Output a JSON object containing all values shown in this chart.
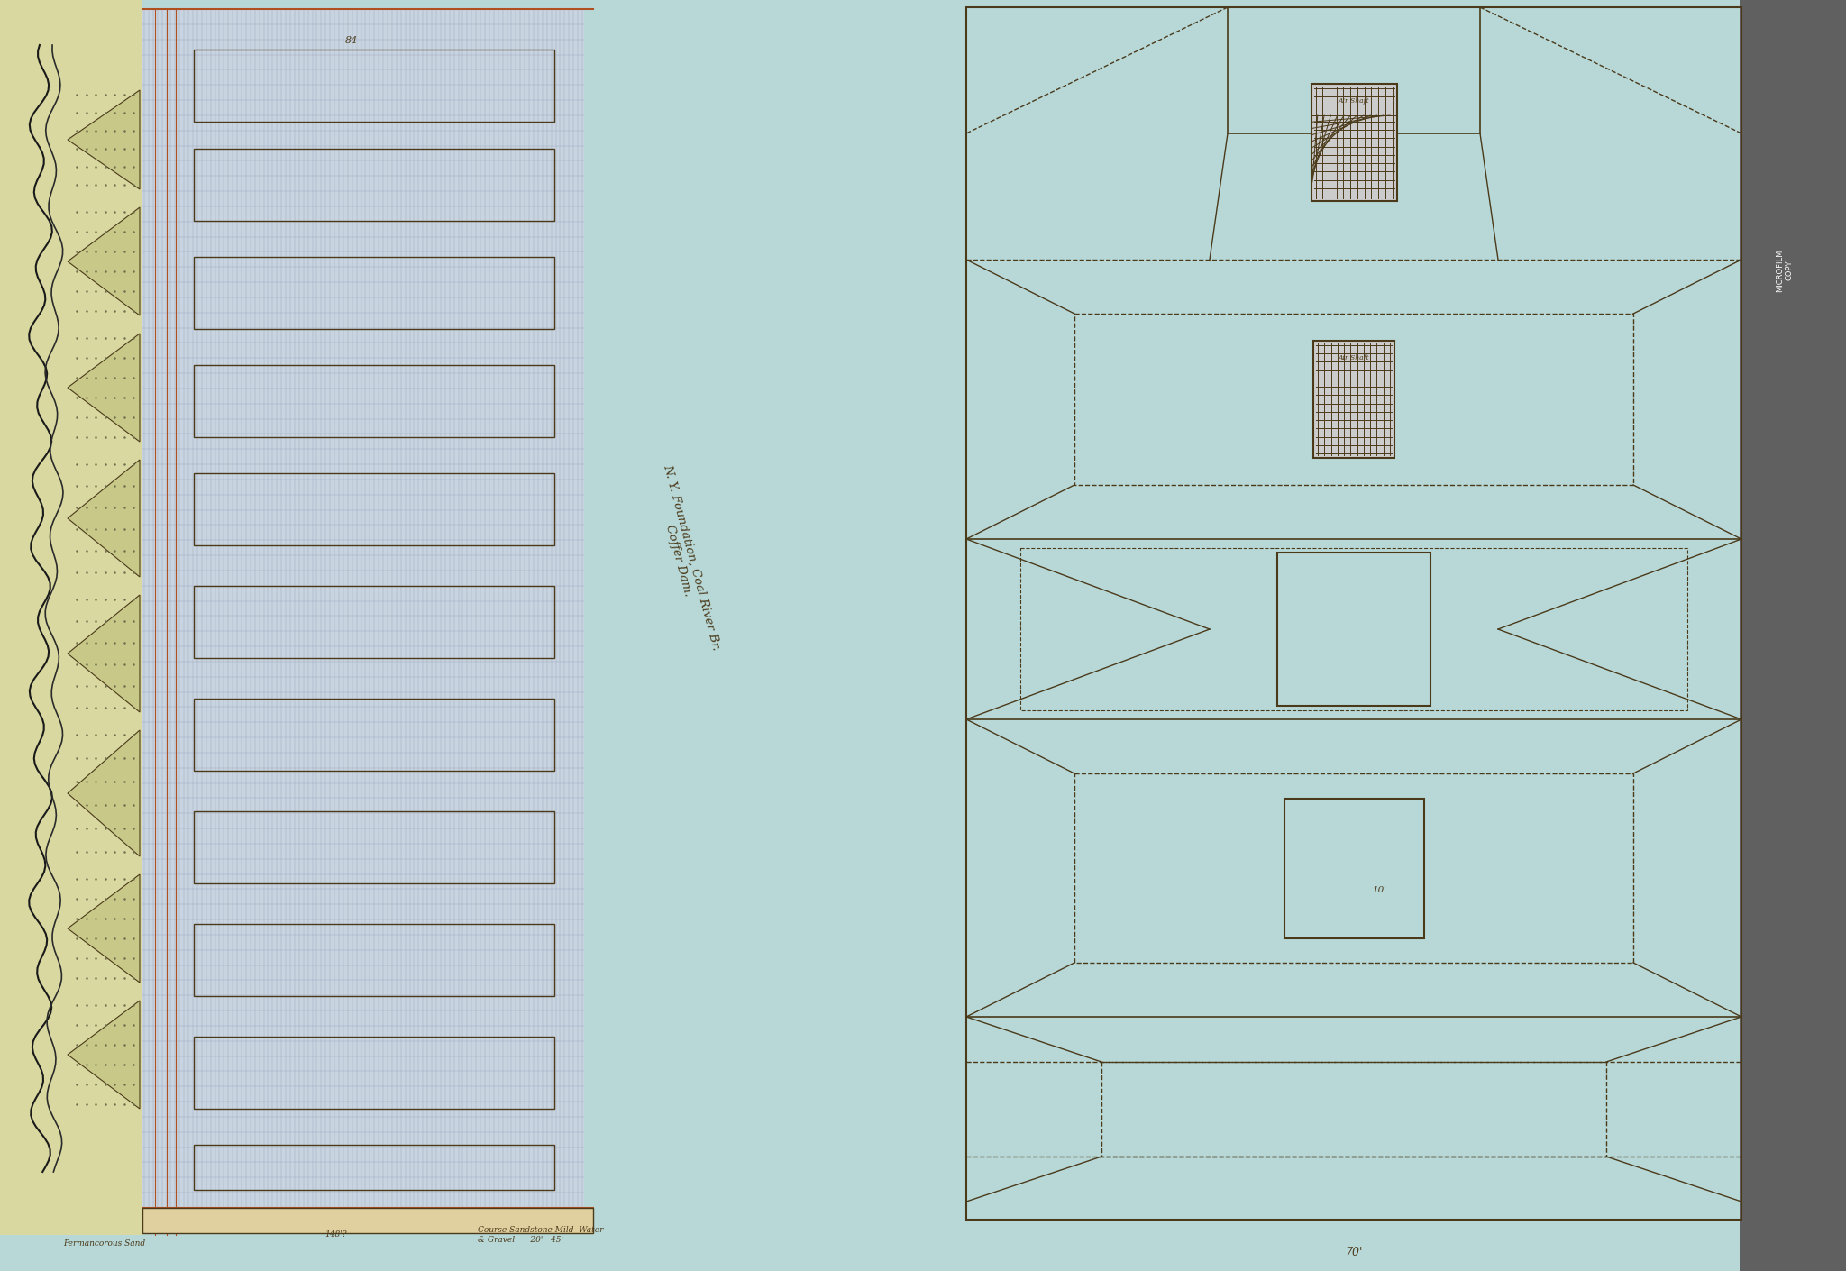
{
  "bg_color": "#b8d8d8",
  "left_bg_color": "#d8d8a0",
  "grid_bg_color": "#c8d4e0",
  "drawing_line_color": "#4a3a1a",
  "red_line_color": "#b05020",
  "figsize": [
    20.48,
    14.1
  ],
  "dpi": 100,
  "notes_bottom": [
    "Permancorous Sand",
    "148'?",
    "Course Sandstone Mild  Water\n& Gravel\n20'   45'"
  ]
}
